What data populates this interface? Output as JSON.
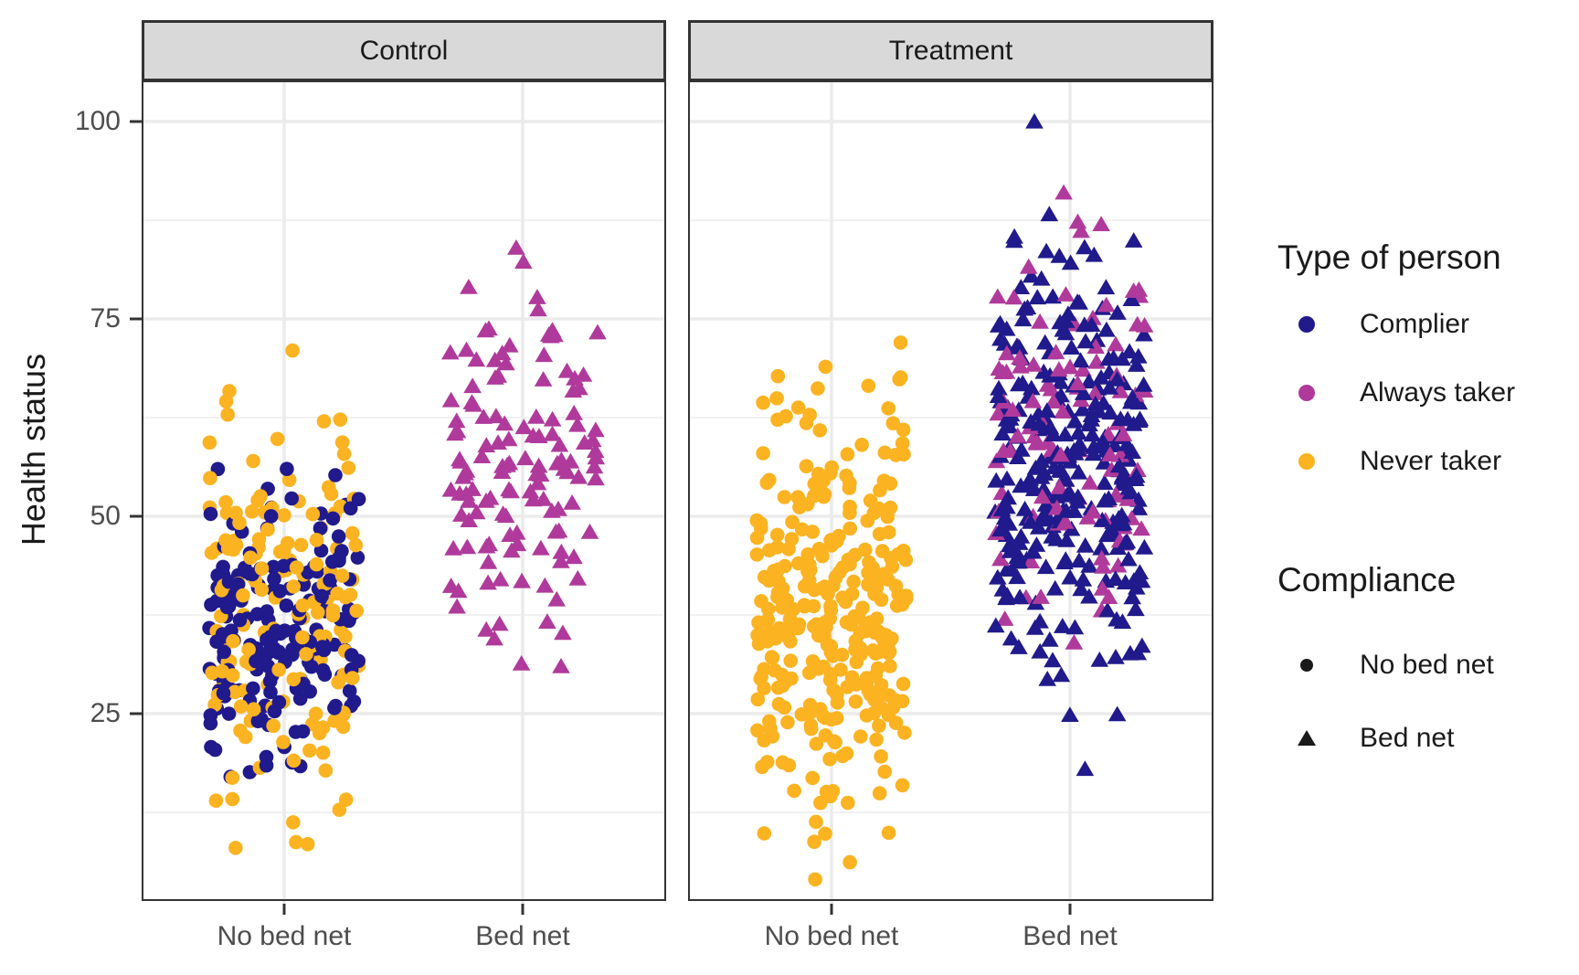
{
  "chart_data": {
    "type": "scatter",
    "subtype": "jittered strip plot, faceted",
    "title": "",
    "facets": [
      {
        "label": "Control"
      },
      {
        "label": "Treatment"
      }
    ],
    "x_categories": [
      "No bed net",
      "Bed net"
    ],
    "xlabel": "",
    "ylabel": "Health status",
    "ylim": [
      1,
      105
    ],
    "y_major_gridlines": [
      25,
      50,
      75,
      100
    ],
    "y_minor_gridlines": [
      12.5,
      37.5,
      62.5,
      87.5
    ],
    "grid": "on",
    "legend_position": "right",
    "colors": {
      "complier": "#201A8C",
      "always_taker": "#B03A9B",
      "never_taker": "#FBB321",
      "marker_black": "#1A1A1A",
      "strip_background": "#D9D9D9",
      "panel_border": "#333333",
      "gridline_major": "#EBEBEB",
      "gridline_minor": "#F1F1F1",
      "tick_text": "#4D4D4D"
    },
    "groups": [
      {
        "facet": "Control",
        "x_category": "No bed net",
        "type": "Complier",
        "shape": "circle",
        "color_key": "complier",
        "n": 185,
        "mean": 36,
        "sd": 8,
        "min": 17,
        "max": 56,
        "seed": 11
      },
      {
        "facet": "Control",
        "x_category": "No bed net",
        "type": "Never taker",
        "shape": "circle",
        "color_key": "never_taker",
        "n": 165,
        "mean": 39,
        "sd": 12,
        "min": 8,
        "max": 71,
        "seed": 22
      },
      {
        "facet": "Control",
        "x_category": "Bed net",
        "type": "Always taker",
        "shape": "triangle",
        "color_key": "always_taker",
        "n": 130,
        "mean": 56,
        "sd": 10,
        "min": 31,
        "max": 84,
        "seed": 33
      },
      {
        "facet": "Treatment",
        "x_category": "No bed net",
        "type": "Never taker",
        "shape": "circle",
        "color_key": "never_taker",
        "n": 310,
        "mean": 38,
        "sd": 12,
        "min": 4,
        "max": 72,
        "seed": 44
      },
      {
        "facet": "Treatment",
        "x_category": "Bed net",
        "type": "Complier",
        "shape": "triangle",
        "color_key": "complier",
        "n": 295,
        "mean": 56,
        "sd": 13,
        "min": 18,
        "max": 100,
        "seed": 55
      },
      {
        "facet": "Treatment",
        "x_category": "Bed net",
        "type": "Always taker",
        "shape": "triangle",
        "color_key": "always_taker",
        "n": 105,
        "mean": 60,
        "sd": 11,
        "min": 34,
        "max": 91,
        "seed": 66
      }
    ]
  },
  "axes": {
    "y_title": "Health status",
    "y_tick_labels_top_to_bottom": [
      "100",
      "75",
      "50",
      "25"
    ],
    "x_tick_labels_per_facet": [
      "No bed net",
      "Bed net"
    ]
  },
  "legend": {
    "type": {
      "title": "Type of person",
      "items": [
        {
          "label": "Complier",
          "marker": "filled-circle",
          "color_key": "complier"
        },
        {
          "label": "Always taker",
          "marker": "filled-circle",
          "color_key": "always_taker"
        },
        {
          "label": "Never taker",
          "marker": "filled-circle",
          "color_key": "never_taker"
        }
      ]
    },
    "compliance": {
      "title": "Compliance",
      "items": [
        {
          "label": "No bed net",
          "marker": "filled-circle",
          "color_key": "marker_black"
        },
        {
          "label": "Bed net",
          "marker": "filled-triangle",
          "color_key": "marker_black"
        }
      ]
    }
  }
}
